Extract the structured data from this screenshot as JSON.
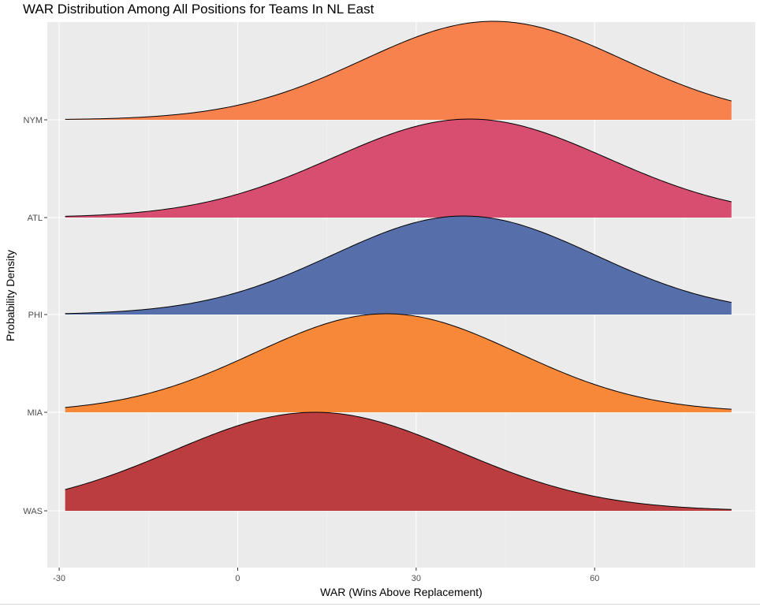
{
  "chart_data": {
    "type": "area",
    "title": "WAR Distribution Among All Positions for Teams In NL East",
    "xlabel": "WAR (Wins Above Replacement)",
    "ylabel": "Probability Density",
    "xlim": [
      -32,
      87
    ],
    "x_ticks": [
      -30,
      0,
      30,
      60
    ],
    "x_tick_labels": [
      "-30",
      "0",
      "30",
      "60"
    ],
    "grid": true,
    "legend": "none",
    "categories": [
      "NYM",
      "ATL",
      "PHI",
      "MIA",
      "WAS"
    ],
    "x_range": [
      -29,
      83
    ],
    "series": [
      {
        "name": "NYM",
        "color": "#f97c45",
        "peak_x": 43,
        "spread": 22,
        "scale": 1.0
      },
      {
        "name": "ATL",
        "color": "#d6466a",
        "peak_x": 39,
        "spread": 23,
        "scale": 1.0
      },
      {
        "name": "PHI",
        "color": "#4e68a8",
        "peak_x": 38,
        "spread": 22,
        "scale": 1.0
      },
      {
        "name": "MIA",
        "color": "#f8832d",
        "peak_x": 25,
        "spread": 22,
        "scale": 1.0
      },
      {
        "name": "WAS",
        "color": "#b83436",
        "peak_x": 13,
        "spread": 24,
        "scale": 1.0
      }
    ]
  }
}
